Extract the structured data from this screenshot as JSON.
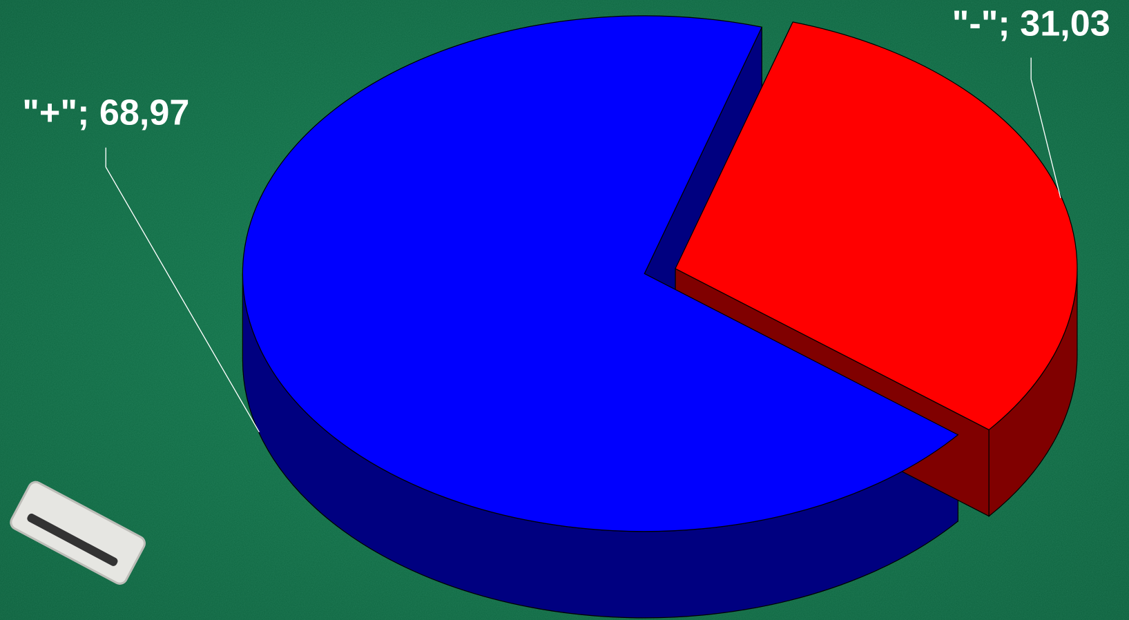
{
  "chart_data": {
    "type": "pie",
    "values": [
      68.97,
      31.03
    ],
    "value_labels": [
      "\"+\"; 68,97",
      "\"-\"; 31,03"
    ],
    "colors": [
      "#0000ff",
      "#ff0000"
    ],
    "side_colors": [
      "#000080",
      "#800000"
    ]
  }
}
